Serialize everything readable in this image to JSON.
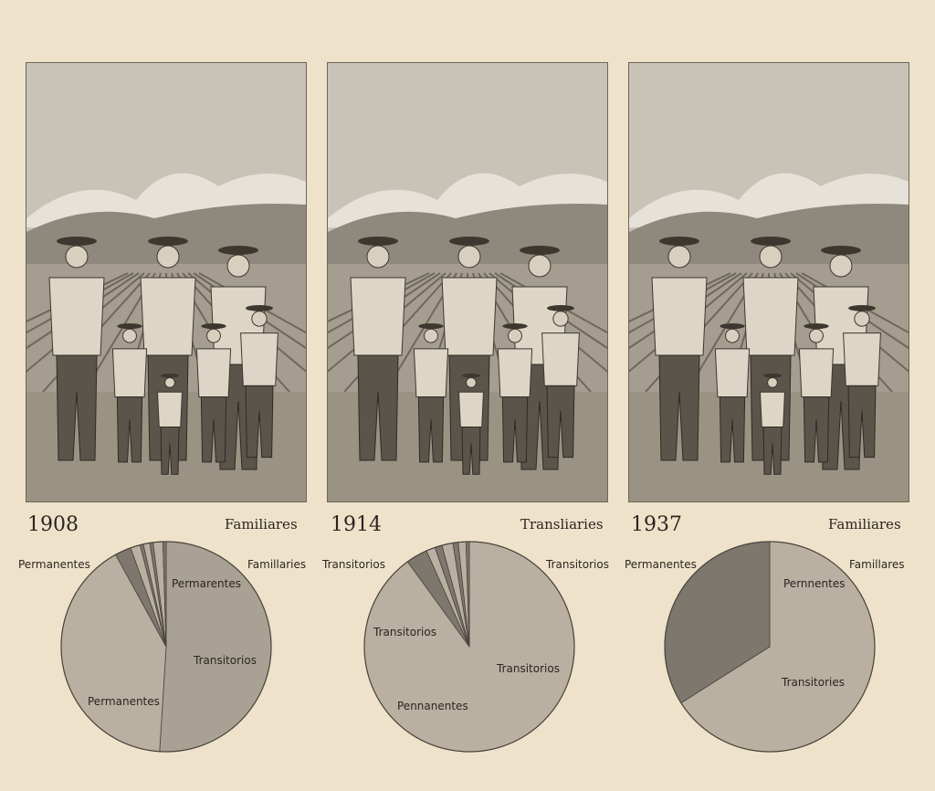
{
  "colors": {
    "paper": "#eee2ca",
    "slice_light": "#b9b0a1",
    "slice_mid": "#a9a193",
    "slice_dark": "#7d776d",
    "outline": "#4a443c"
  },
  "panels": [
    {
      "year": "1908",
      "heading": "Familiares",
      "labels": [
        "Permanentes",
        "Famillaries",
        "Permarentes",
        "Transitorios",
        "Permanentes"
      ]
    },
    {
      "year": "1914",
      "heading": "Transliaries",
      "labels": [
        "Transitorios",
        "Transitorios",
        "Transitorios",
        "Transitorios",
        "Pennanentes"
      ]
    },
    {
      "year": "1937",
      "heading": "Familiares",
      "labels": [
        "Permanentes",
        "Famillares",
        "Pernnentes",
        "Transitories"
      ]
    }
  ],
  "chart_data": [
    {
      "type": "pie",
      "title": "1908",
      "values": [
        51,
        41,
        2.5,
        1.5,
        0.5,
        1,
        0.5,
        1.5,
        0.5
      ],
      "shades": [
        "mid",
        "light",
        "dark",
        "light",
        "dark",
        "light",
        "dark",
        "light",
        "dark"
      ]
    },
    {
      "type": "pie",
      "title": "1914",
      "values": [
        90,
        3.3,
        1.4,
        1.1,
        1.7,
        0.8,
        1.2,
        0.5
      ],
      "shades": [
        "light",
        "dark",
        "light",
        "dark",
        "light",
        "dark",
        "light",
        "dark"
      ]
    },
    {
      "type": "pie",
      "title": "1937",
      "values": [
        66,
        34
      ],
      "shades": [
        "light",
        "dark"
      ]
    }
  ]
}
